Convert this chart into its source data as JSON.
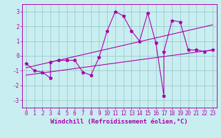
{
  "title": "",
  "xlabel": "Windchill (Refroidissement éolien,°C)",
  "ylabel": "",
  "bg_color": "#c8eef0",
  "grid_color": "#a0c8d0",
  "line_color": "#aa00aa",
  "xlim": [
    -0.5,
    23.5
  ],
  "ylim": [
    -3.5,
    3.5
  ],
  "yticks": [
    -3,
    -2,
    -1,
    0,
    1,
    2,
    3
  ],
  "xticks": [
    0,
    1,
    2,
    3,
    4,
    5,
    6,
    7,
    8,
    9,
    10,
    11,
    12,
    13,
    14,
    15,
    16,
    17,
    18,
    19,
    20,
    21,
    22,
    23
  ],
  "main_series_x": [
    0,
    1,
    2,
    3,
    3,
    4,
    5,
    6,
    7,
    8,
    9,
    10,
    11,
    12,
    13,
    14,
    15,
    16,
    17,
    17,
    18,
    19,
    20,
    21,
    22,
    23
  ],
  "main_series_y": [
    -0.5,
    -1.0,
    -1.1,
    -1.5,
    -0.4,
    -0.3,
    -0.3,
    -0.3,
    -1.1,
    -1.3,
    -0.1,
    1.7,
    3.0,
    2.7,
    1.7,
    1.0,
    2.9,
    0.9,
    -2.7,
    0.3,
    2.4,
    2.3,
    0.4,
    0.4,
    0.3,
    0.4
  ],
  "trend1_x": [
    0,
    23
  ],
  "trend1_y": [
    -1.3,
    0.4
  ],
  "trend2_x": [
    0,
    23
  ],
  "trend2_y": [
    -0.8,
    2.1
  ],
  "font_family": "monospace",
  "tick_fontsize": 5.5,
  "xlabel_fontsize": 6.5
}
